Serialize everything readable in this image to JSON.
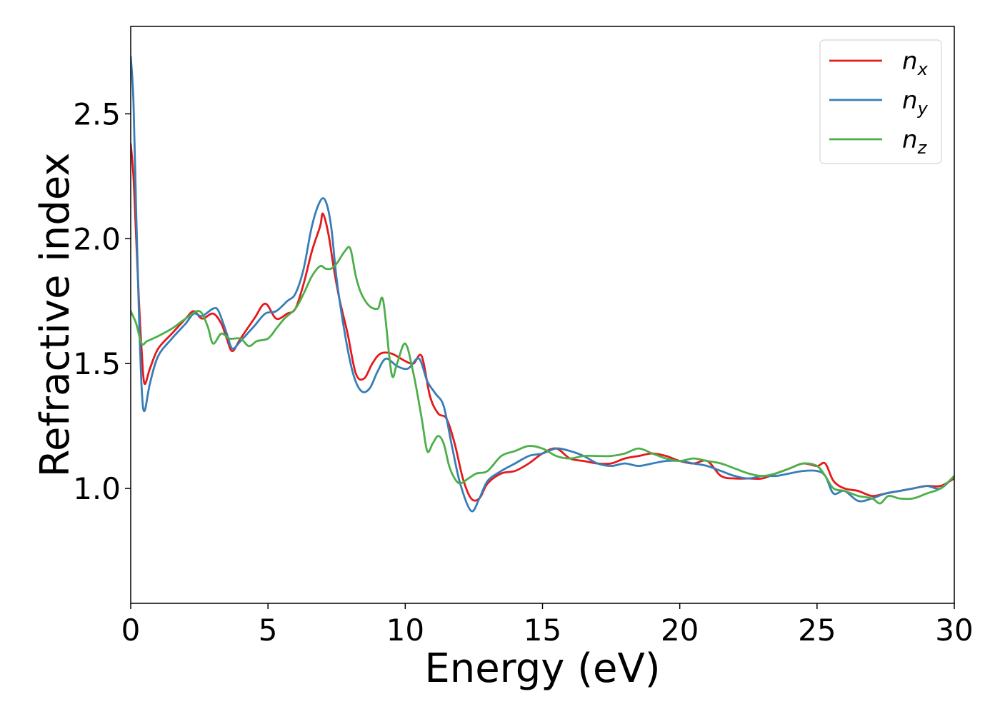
{
  "chart_data": {
    "type": "line",
    "xlabel": "Energy (eV)",
    "ylabel": "Refractive index",
    "xlim": [
      0,
      30
    ],
    "ylim": [
      0.54,
      2.85
    ],
    "x_ticks": [
      0,
      5,
      10,
      15,
      20,
      25,
      30
    ],
    "x_tick_labels": [
      "0",
      "5",
      "10",
      "15",
      "20",
      "25",
      "30"
    ],
    "y_ticks": [
      1.0,
      1.5,
      2.0,
      2.5
    ],
    "y_tick_labels": [
      "1.0",
      "1.5",
      "2.0",
      "2.5"
    ],
    "grid": false,
    "legend_position": "top-right",
    "series": [
      {
        "name": "n_x",
        "base": "n",
        "subscript": "x",
        "color": "#e41a1c",
        "x": [
          0,
          0.1,
          0.2,
          0.3,
          0.4,
          0.5,
          0.7,
          1.0,
          1.5,
          2.0,
          2.3,
          2.6,
          3.0,
          3.3,
          3.5,
          3.7,
          4.0,
          4.5,
          4.9,
          5.3,
          5.7,
          6.0,
          6.3,
          6.6,
          6.9,
          7.0,
          7.2,
          7.4,
          7.6,
          7.9,
          8.2,
          8.5,
          8.8,
          9.1,
          9.5,
          10.0,
          10.3,
          10.6,
          10.9,
          11.2,
          11.5,
          11.8,
          12.1,
          12.4,
          12.7,
          13.0,
          13.5,
          14.0,
          14.5,
          15.0,
          15.5,
          16.0,
          16.5,
          17.0,
          17.5,
          18.0,
          18.5,
          19.0,
          19.5,
          20.0,
          20.5,
          21.0,
          21.5,
          22.0,
          22.5,
          23.0,
          23.5,
          24.0,
          24.5,
          25.0,
          25.3,
          25.6,
          26.0,
          26.5,
          27.0,
          27.5,
          28.0,
          28.5,
          29.0,
          29.5,
          30.0
        ],
        "y": [
          2.38,
          2.25,
          2.0,
          1.75,
          1.55,
          1.42,
          1.48,
          1.56,
          1.62,
          1.68,
          1.71,
          1.68,
          1.7,
          1.66,
          1.6,
          1.55,
          1.6,
          1.68,
          1.74,
          1.68,
          1.7,
          1.72,
          1.82,
          1.95,
          2.05,
          2.1,
          2.02,
          1.88,
          1.76,
          1.62,
          1.46,
          1.44,
          1.5,
          1.54,
          1.54,
          1.51,
          1.5,
          1.53,
          1.37,
          1.3,
          1.28,
          1.18,
          1.04,
          0.96,
          0.96,
          1.02,
          1.06,
          1.07,
          1.1,
          1.14,
          1.16,
          1.12,
          1.11,
          1.1,
          1.1,
          1.12,
          1.13,
          1.14,
          1.13,
          1.11,
          1.1,
          1.11,
          1.05,
          1.04,
          1.04,
          1.04,
          1.06,
          1.08,
          1.1,
          1.09,
          1.1,
          1.03,
          1.0,
          0.99,
          0.97,
          0.98,
          0.99,
          1.0,
          1.01,
          1.01,
          1.04
        ]
      },
      {
        "name": "n_y",
        "base": "n",
        "subscript": "y",
        "color": "#377eb8",
        "x": [
          0,
          0.1,
          0.2,
          0.3,
          0.4,
          0.5,
          0.7,
          1.0,
          1.5,
          2.0,
          2.3,
          2.6,
          3.0,
          3.2,
          3.5,
          3.7,
          4.0,
          4.5,
          4.9,
          5.3,
          5.7,
          6.0,
          6.3,
          6.6,
          6.9,
          7.1,
          7.3,
          7.5,
          7.8,
          8.1,
          8.4,
          8.7,
          9.0,
          9.3,
          9.7,
          10.1,
          10.5,
          10.8,
          11.1,
          11.4,
          11.7,
          12.0,
          12.4,
          12.7,
          13.0,
          13.5,
          14.0,
          14.5,
          15.0,
          15.5,
          16.0,
          16.5,
          17.0,
          17.5,
          18.0,
          18.5,
          19.0,
          19.5,
          20.0,
          20.5,
          21.0,
          21.5,
          22.0,
          22.5,
          23.0,
          23.5,
          24.0,
          24.5,
          25.0,
          25.3,
          25.6,
          26.0,
          26.5,
          27.0,
          27.5,
          28.0,
          28.5,
          29.0,
          29.5,
          30.0
        ],
        "y": [
          2.73,
          2.55,
          2.1,
          1.7,
          1.4,
          1.31,
          1.42,
          1.53,
          1.6,
          1.66,
          1.7,
          1.69,
          1.72,
          1.71,
          1.62,
          1.56,
          1.59,
          1.65,
          1.7,
          1.71,
          1.75,
          1.78,
          1.88,
          2.05,
          2.15,
          2.15,
          2.05,
          1.84,
          1.62,
          1.46,
          1.39,
          1.4,
          1.47,
          1.52,
          1.49,
          1.48,
          1.52,
          1.43,
          1.38,
          1.33,
          1.17,
          1.02,
          0.91,
          0.96,
          1.03,
          1.07,
          1.1,
          1.13,
          1.14,
          1.16,
          1.15,
          1.13,
          1.1,
          1.09,
          1.1,
          1.09,
          1.1,
          1.11,
          1.11,
          1.1,
          1.09,
          1.07,
          1.05,
          1.04,
          1.05,
          1.05,
          1.06,
          1.07,
          1.07,
          1.05,
          0.98,
          0.99,
          0.95,
          0.96,
          0.98,
          0.99,
          1.0,
          1.01,
          1.0,
          1.05
        ]
      },
      {
        "name": "n_z",
        "base": "n",
        "subscript": "z",
        "color": "#4daf4a",
        "x": [
          0,
          0.2,
          0.4,
          0.6,
          1.0,
          1.5,
          2.0,
          2.5,
          2.8,
          3.0,
          3.3,
          3.6,
          4.0,
          4.3,
          4.6,
          5.0,
          5.3,
          5.6,
          6.0,
          6.3,
          6.6,
          6.9,
          7.1,
          7.3,
          7.5,
          7.8,
          8.0,
          8.2,
          8.4,
          8.7,
          9.0,
          9.2,
          9.5,
          9.7,
          10.0,
          10.3,
          10.6,
          10.8,
          11.0,
          11.2,
          11.4,
          11.6,
          11.8,
          12.0,
          12.3,
          12.6,
          13.0,
          13.5,
          14.0,
          14.5,
          15.0,
          15.5,
          16.0,
          16.5,
          17.0,
          17.5,
          18.0,
          18.5,
          19.0,
          19.5,
          20.0,
          20.5,
          21.0,
          21.5,
          22.0,
          22.5,
          23.0,
          23.5,
          24.0,
          24.5,
          25.0,
          25.3,
          25.6,
          26.0,
          26.5,
          27.0,
          27.3,
          27.6,
          28.0,
          28.5,
          29.0,
          29.5,
          30.0
        ],
        "y": [
          1.71,
          1.66,
          1.58,
          1.59,
          1.61,
          1.64,
          1.68,
          1.71,
          1.65,
          1.58,
          1.62,
          1.6,
          1.6,
          1.57,
          1.59,
          1.6,
          1.64,
          1.68,
          1.72,
          1.78,
          1.85,
          1.89,
          1.88,
          1.88,
          1.9,
          1.95,
          1.96,
          1.85,
          1.78,
          1.73,
          1.72,
          1.75,
          1.46,
          1.5,
          1.58,
          1.46,
          1.28,
          1.15,
          1.18,
          1.21,
          1.18,
          1.09,
          1.04,
          1.02,
          1.04,
          1.06,
          1.07,
          1.13,
          1.15,
          1.17,
          1.16,
          1.13,
          1.12,
          1.13,
          1.13,
          1.13,
          1.14,
          1.16,
          1.14,
          1.12,
          1.11,
          1.12,
          1.11,
          1.1,
          1.08,
          1.06,
          1.05,
          1.06,
          1.08,
          1.1,
          1.09,
          1.05,
          1.0,
          0.99,
          0.97,
          0.96,
          0.94,
          0.97,
          0.96,
          0.96,
          0.98,
          1.0,
          1.05
        ]
      }
    ]
  }
}
